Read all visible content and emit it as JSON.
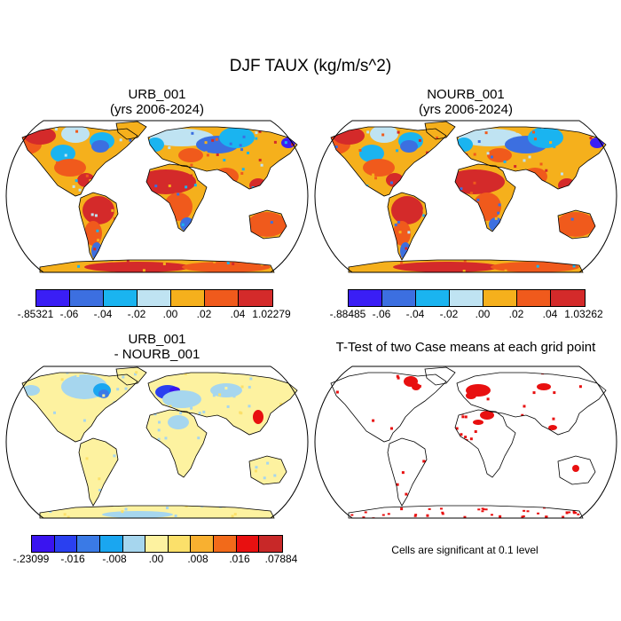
{
  "title": "DJF TAUX (kg/m/s^2)",
  "panels": {
    "urb": {
      "title": "URB_001",
      "subtitle": "(yrs 2006-2024)"
    },
    "nourb": {
      "title": "NOURB_001",
      "subtitle": "(yrs 2006-2024)"
    },
    "diff": {
      "title": "URB_001",
      "subtitle": "- NOURB_001"
    },
    "ttest": {
      "title": "T-Test of two Case means at each grid point"
    }
  },
  "colorbars": {
    "urb": {
      "colors": [
        "#3a1ef5",
        "#3c6fe0",
        "#1ab4f0",
        "#bfe3f2",
        "#f5b01c",
        "#f05a1c",
        "#d42a2a"
      ],
      "labels": [
        "-.85321",
        "-.06",
        "-.04",
        "-.02",
        ".00",
        ".02",
        ".04",
        "1.02279"
      ]
    },
    "nourb": {
      "colors": [
        "#3a1ef5",
        "#3c6fe0",
        "#1ab4f0",
        "#bfe3f2",
        "#f5b01c",
        "#f05a1c",
        "#d42a2a"
      ],
      "labels": [
        "-.88485",
        "-.06",
        "-.04",
        "-.02",
        ".00",
        ".02",
        ".04",
        "1.03262"
      ]
    },
    "diff": {
      "colors": [
        "#3a14f0",
        "#2a40f0",
        "#3a7ae6",
        "#1aa6f0",
        "#a6d6ee",
        "#fdf2a0",
        "#fbe06a",
        "#f8b030",
        "#f26a1a",
        "#e81010",
        "#c82828"
      ],
      "labels": [
        "-.23099",
        "-.016",
        "-.008",
        ".00",
        ".008",
        ".016",
        ".07884"
      ]
    }
  },
  "note": "Cells are significant at 0.1 level"
}
